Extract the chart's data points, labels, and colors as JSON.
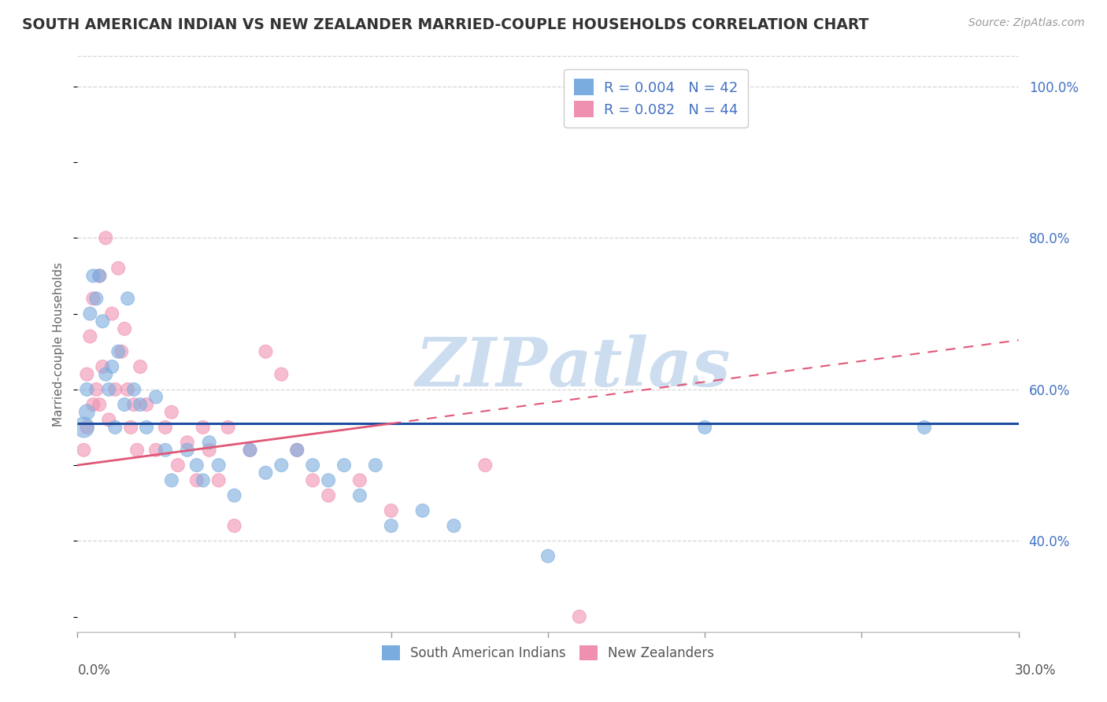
{
  "title": "SOUTH AMERICAN INDIAN VS NEW ZEALANDER MARRIED-COUPLE HOUSEHOLDS CORRELATION CHART",
  "source": "Source: ZipAtlas.com",
  "ylabel": "Married-couple Households",
  "watermark": "ZIPAtlas",
  "legend_series": [
    {
      "label": "South American Indians",
      "color": "#a8c8e8",
      "R": "0.004",
      "N": "42"
    },
    {
      "label": "New Zealanders",
      "color": "#f4a0b8",
      "R": "0.082",
      "N": "44"
    }
  ],
  "blue_x": [
    0.002,
    0.003,
    0.003,
    0.004,
    0.005,
    0.006,
    0.007,
    0.008,
    0.009,
    0.01,
    0.011,
    0.012,
    0.013,
    0.015,
    0.016,
    0.018,
    0.02,
    0.022,
    0.025,
    0.028,
    0.03,
    0.035,
    0.038,
    0.04,
    0.042,
    0.045,
    0.05,
    0.055,
    0.06,
    0.065,
    0.07,
    0.075,
    0.08,
    0.085,
    0.09,
    0.095,
    0.1,
    0.11,
    0.12,
    0.15,
    0.2,
    0.27
  ],
  "blue_y": [
    0.55,
    0.57,
    0.6,
    0.7,
    0.75,
    0.72,
    0.75,
    0.69,
    0.62,
    0.6,
    0.63,
    0.55,
    0.65,
    0.58,
    0.72,
    0.6,
    0.58,
    0.55,
    0.59,
    0.52,
    0.48,
    0.52,
    0.5,
    0.48,
    0.53,
    0.5,
    0.46,
    0.52,
    0.49,
    0.5,
    0.52,
    0.5,
    0.48,
    0.5,
    0.46,
    0.5,
    0.42,
    0.44,
    0.42,
    0.38,
    0.55,
    0.55
  ],
  "blue_sizes": [
    350,
    200,
    150,
    150,
    150,
    150,
    150,
    150,
    150,
    150,
    150,
    150,
    150,
    150,
    150,
    150,
    150,
    150,
    150,
    150,
    150,
    150,
    150,
    150,
    150,
    150,
    150,
    150,
    150,
    150,
    150,
    150,
    150,
    150,
    150,
    150,
    150,
    150,
    150,
    150,
    150,
    150
  ],
  "pink_x": [
    0.002,
    0.003,
    0.003,
    0.004,
    0.005,
    0.005,
    0.006,
    0.007,
    0.007,
    0.008,
    0.009,
    0.01,
    0.011,
    0.012,
    0.013,
    0.014,
    0.015,
    0.016,
    0.017,
    0.018,
    0.019,
    0.02,
    0.022,
    0.025,
    0.028,
    0.03,
    0.032,
    0.035,
    0.038,
    0.04,
    0.042,
    0.045,
    0.048,
    0.05,
    0.055,
    0.06,
    0.065,
    0.07,
    0.075,
    0.08,
    0.09,
    0.1,
    0.13,
    0.16
  ],
  "pink_y": [
    0.52,
    0.55,
    0.62,
    0.67,
    0.58,
    0.72,
    0.6,
    0.58,
    0.75,
    0.63,
    0.8,
    0.56,
    0.7,
    0.6,
    0.76,
    0.65,
    0.68,
    0.6,
    0.55,
    0.58,
    0.52,
    0.63,
    0.58,
    0.52,
    0.55,
    0.57,
    0.5,
    0.53,
    0.48,
    0.55,
    0.52,
    0.48,
    0.55,
    0.42,
    0.52,
    0.65,
    0.62,
    0.52,
    0.48,
    0.46,
    0.48,
    0.44,
    0.5,
    0.3
  ],
  "pink_sizes": [
    150,
    150,
    150,
    150,
    150,
    150,
    150,
    150,
    150,
    150,
    150,
    150,
    150,
    150,
    150,
    150,
    150,
    150,
    150,
    150,
    150,
    150,
    150,
    150,
    150,
    150,
    150,
    150,
    150,
    150,
    150,
    150,
    150,
    150,
    150,
    150,
    150,
    150,
    150,
    150,
    150,
    150,
    150,
    150
  ],
  "xlim": [
    0.0,
    0.3
  ],
  "ylim": [
    0.28,
    1.04
  ],
  "yticks": [
    0.4,
    0.6,
    0.8,
    1.0
  ],
  "ytick_labels": [
    "40.0%",
    "60.0%",
    "80.0%",
    "100.0%"
  ],
  "xticks": [
    0.0,
    0.3
  ],
  "xtick_labels": [
    "0.0%",
    "30.0%"
  ],
  "background_color": "#ffffff",
  "grid_color": "#cccccc",
  "blue_line_color": "#1f4ea1",
  "pink_line_color": "#e05878",
  "title_color": "#333333",
  "axis_label_color": "#666666",
  "right_axis_color": "#4472c4",
  "watermark_color": "#ccddf0",
  "blue_dot_color": "#7aacdf",
  "pink_dot_color": "#f090b0"
}
